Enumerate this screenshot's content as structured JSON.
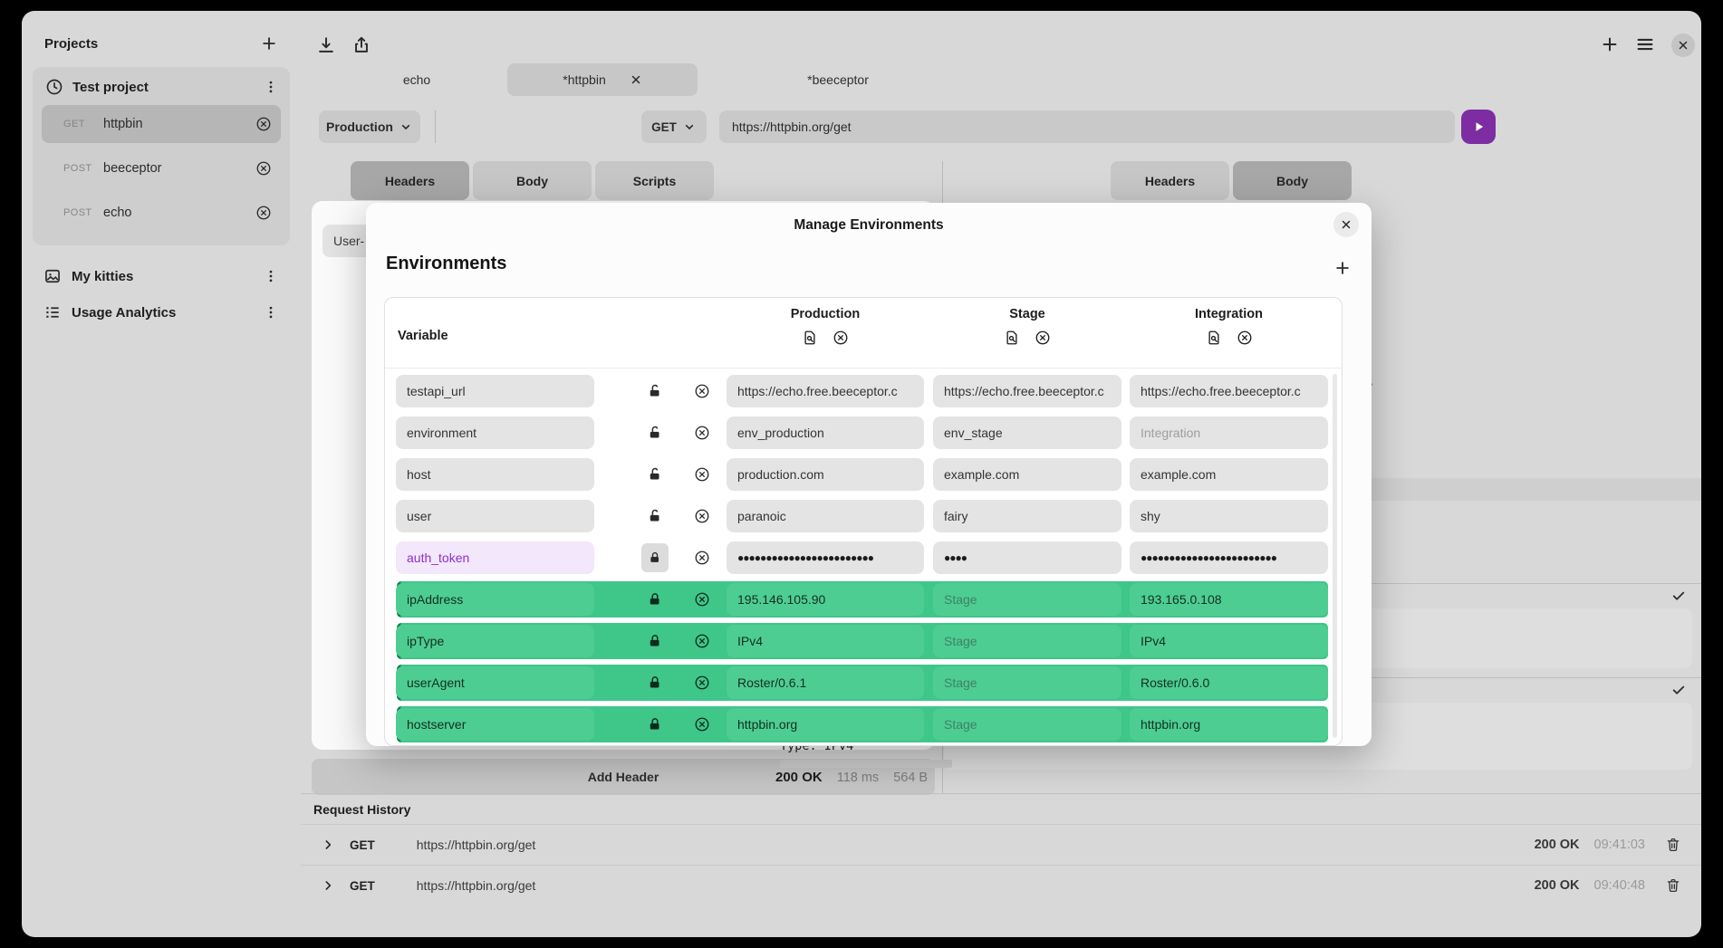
{
  "window": {
    "controls": {
      "new_tab": "+",
      "menu": "menu",
      "close": "x"
    }
  },
  "sidebar": {
    "title": "Projects",
    "project_group": {
      "name": "Test project",
      "requests": [
        {
          "method": "GET",
          "name": "httpbin",
          "selected": true
        },
        {
          "method": "POST",
          "name": "beeceptor",
          "selected": false
        },
        {
          "method": "POST",
          "name": "echo",
          "selected": false
        }
      ]
    },
    "other_projects": [
      {
        "name": "My kitties",
        "icon": "image-icon"
      },
      {
        "name": "Usage Analytics",
        "icon": "list-icon"
      }
    ]
  },
  "tab_strip": {
    "tabs": [
      {
        "label": "echo",
        "active": false,
        "closable": false
      },
      {
        "label": "*httpbin",
        "active": true,
        "closable": true
      },
      {
        "label": "*beeceptor",
        "active": false,
        "closable": false
      }
    ]
  },
  "request_bar": {
    "environment": "Production",
    "method": "GET",
    "url": "https://httpbin.org/get"
  },
  "request_panel": {
    "tabs": [
      {
        "label": "Headers",
        "active": true
      },
      {
        "label": "Body",
        "active": false
      },
      {
        "label": "Scripts",
        "active": false
      }
    ],
    "visible_header_name_fragment": "User-",
    "add_header_label": "Add Header"
  },
  "response_panel": {
    "tabs": [
      {
        "label": "Headers",
        "active": false
      },
      {
        "label": "Body",
        "active": true
      }
    ],
    "body_fragment_string_close": "\"",
    "body_fragment_comma": ",",
    "type_line": "Type: IPv4",
    "status": "200 OK",
    "duration": "118 ms",
    "size": "564 B"
  },
  "modal": {
    "title": "Manage Environments",
    "section_title": "Environments",
    "table": {
      "variable_header": "Variable",
      "environments": [
        "Production",
        "Stage",
        "Integration"
      ],
      "rows": [
        {
          "variable": "testapi_url",
          "style": "normal",
          "lock": "open",
          "values": [
            {
              "text": "https://echo.free.beeceptor.c"
            },
            {
              "text": "https://echo.free.beeceptor.c"
            },
            {
              "text": "https://echo.free.beeceptor.c"
            }
          ]
        },
        {
          "variable": "environment",
          "style": "normal",
          "lock": "open",
          "values": [
            {
              "text": "env_production"
            },
            {
              "text": "env_stage"
            },
            {
              "text": "",
              "placeholder": "Integration"
            }
          ]
        },
        {
          "variable": "host",
          "style": "normal",
          "lock": "open",
          "values": [
            {
              "text": "production.com"
            },
            {
              "text": "example.com"
            },
            {
              "text": "example.com"
            }
          ]
        },
        {
          "variable": "user",
          "style": "normal",
          "lock": "open",
          "values": [
            {
              "text": "paranoic"
            },
            {
              "text": "fairy"
            },
            {
              "text": "shy"
            }
          ]
        },
        {
          "variable": "auth_token",
          "style": "secret",
          "lock": "locked-button",
          "values": [
            {
              "text": "●●●●●●●●●●●●●●●●●●●●●●●●",
              "masked": true
            },
            {
              "text": "●●●●",
              "masked": true
            },
            {
              "text": "●●●●●●●●●●●●●●●●●●●●●●●●",
              "masked": true
            }
          ]
        },
        {
          "variable": "ipAddress",
          "style": "env",
          "lock": "locked",
          "values": [
            {
              "text": "195.146.105.90"
            },
            {
              "text": "",
              "placeholder": "Stage"
            },
            {
              "text": "193.165.0.108"
            }
          ]
        },
        {
          "variable": "ipType",
          "style": "env",
          "lock": "locked",
          "values": [
            {
              "text": "IPv4"
            },
            {
              "text": "",
              "placeholder": "Stage"
            },
            {
              "text": "IPv4"
            }
          ]
        },
        {
          "variable": "userAgent",
          "style": "env",
          "lock": "locked",
          "values": [
            {
              "text": "Roster/0.6.1"
            },
            {
              "text": "",
              "placeholder": "Stage"
            },
            {
              "text": "Roster/0.6.0"
            }
          ]
        },
        {
          "variable": "hostserver",
          "style": "env",
          "lock": "locked",
          "values": [
            {
              "text": "httpbin.org"
            },
            {
              "text": "",
              "placeholder": "Stage"
            },
            {
              "text": "httpbin.org"
            }
          ]
        }
      ]
    }
  },
  "history": {
    "title": "Request History",
    "entries": [
      {
        "method": "GET",
        "url": "https://httpbin.org/get",
        "status": "200 OK",
        "time": "09:41:03"
      },
      {
        "method": "GET",
        "url": "https://httpbin.org/get",
        "status": "200 OK",
        "time": "09:40:48"
      }
    ]
  },
  "colors": {
    "accent_purple": "#7d2da1",
    "env_row_green": "#3fc689",
    "secret_purple": "#8e2fc9",
    "json_string_teal": "#20957f"
  }
}
